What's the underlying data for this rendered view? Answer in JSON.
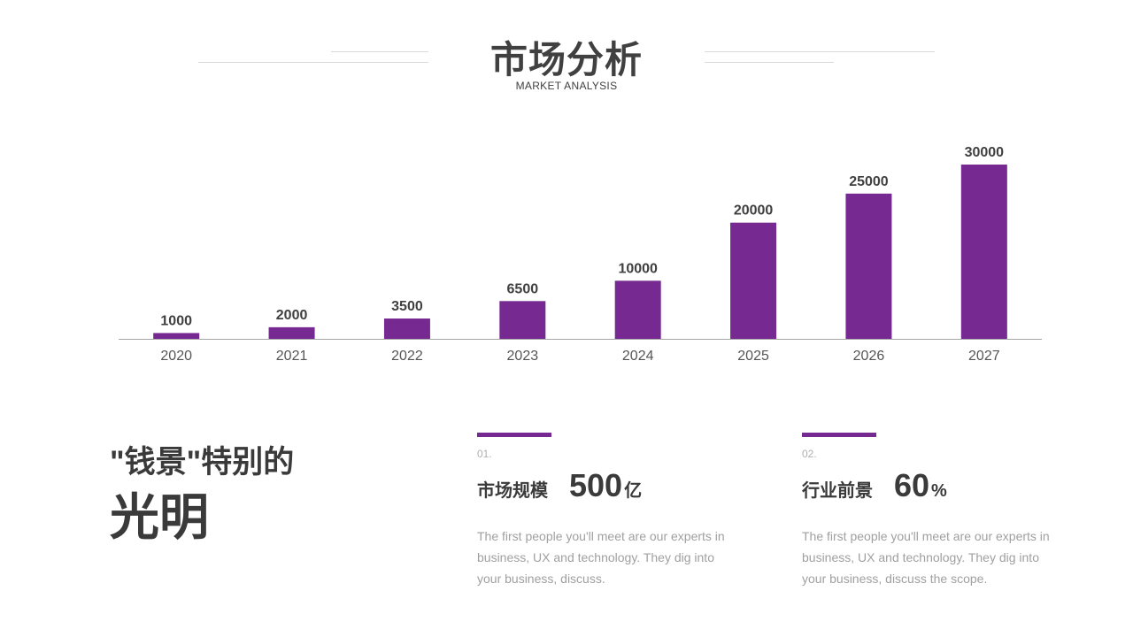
{
  "header": {
    "title": "市场分析",
    "subtitle": "MARKET ANALYSIS"
  },
  "chart_data": {
    "type": "bar",
    "categories": [
      "2020",
      "2021",
      "2022",
      "2023",
      "2024",
      "2025",
      "2026",
      "2027"
    ],
    "values": [
      1000,
      2000,
      3500,
      6500,
      10000,
      20000,
      25000,
      30000
    ],
    "data_labels": [
      "1000",
      "2000",
      "3500",
      "6500",
      "10000",
      "20000",
      "25000",
      "30000"
    ],
    "ylim": [
      0,
      30000
    ],
    "grid": false,
    "color": "#752991"
  },
  "headline": {
    "line1": "\"钱景\"特别的",
    "line2": "光明"
  },
  "stats": [
    {
      "index": "01.",
      "label": "市场规模",
      "value": "500",
      "unit": "亿",
      "description": "The first people you'll meet are our experts in business, UX and technology. They dig into your business, discuss."
    },
    {
      "index": "02.",
      "label": "行业前景",
      "value": "60",
      "unit": "%",
      "description": "The first people you'll meet are our experts in business, UX and technology. They dig into your business, discuss the scope."
    }
  ],
  "colors": {
    "accent": "#752991",
    "text": "#3a3a3a",
    "muted": "#a0a0a0"
  }
}
